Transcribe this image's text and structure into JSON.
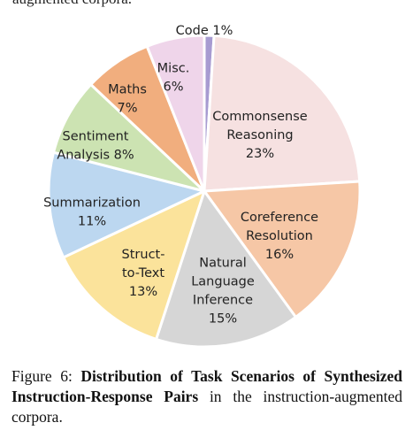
{
  "top_fragment": "augmented corpora.",
  "chart_data": {
    "type": "pie",
    "slices": [
      {
        "label": "Code",
        "value": 1,
        "color": "#a79bd1"
      },
      {
        "label": "Commonsense Reasoning",
        "value": 23,
        "color": "#f6e1e1"
      },
      {
        "label": "Coreference Resolution",
        "value": 16,
        "color": "#f6c7a6"
      },
      {
        "label": "Natural Language Inference",
        "value": 15,
        "color": "#d6d6d6"
      },
      {
        "label": "Struct-to-Text",
        "value": 13,
        "color": "#fbe39b"
      },
      {
        "label": "Summarization",
        "value": 11,
        "color": "#bcd7f0"
      },
      {
        "label": "Sentiment Analysis",
        "value": 8,
        "color": "#cce3b2"
      },
      {
        "label": "Maths",
        "value": 7,
        "color": "#f1ae7e"
      },
      {
        "label": "Misc.",
        "value": 6,
        "color": "#efd5ea"
      }
    ],
    "labels": [
      {
        "lines": [
          "Code 1%"
        ]
      },
      {
        "lines": [
          "Commonsense",
          "Reasoning",
          "23%"
        ]
      },
      {
        "lines": [
          "Coreference",
          "Resolution",
          "16%"
        ]
      },
      {
        "lines": [
          "Natural",
          "Language",
          "Inference",
          "15%"
        ]
      },
      {
        "lines": [
          "Struct-",
          "to-Text",
          "13%"
        ]
      },
      {
        "lines": [
          "Summarization",
          "11%"
        ]
      },
      {
        "lines": [
          "Sentiment",
          "Analysis 8%"
        ]
      },
      {
        "lines": [
          "Maths",
          "7%"
        ]
      },
      {
        "lines": [
          "Misc.",
          "6%"
        ]
      }
    ]
  },
  "caption": {
    "prefix": "Figure 6: ",
    "bold": "Distribution of Task Scenarios of Synthesized Instruction-Response Pairs",
    "suffix": " in the instruction-augmented corpora."
  }
}
